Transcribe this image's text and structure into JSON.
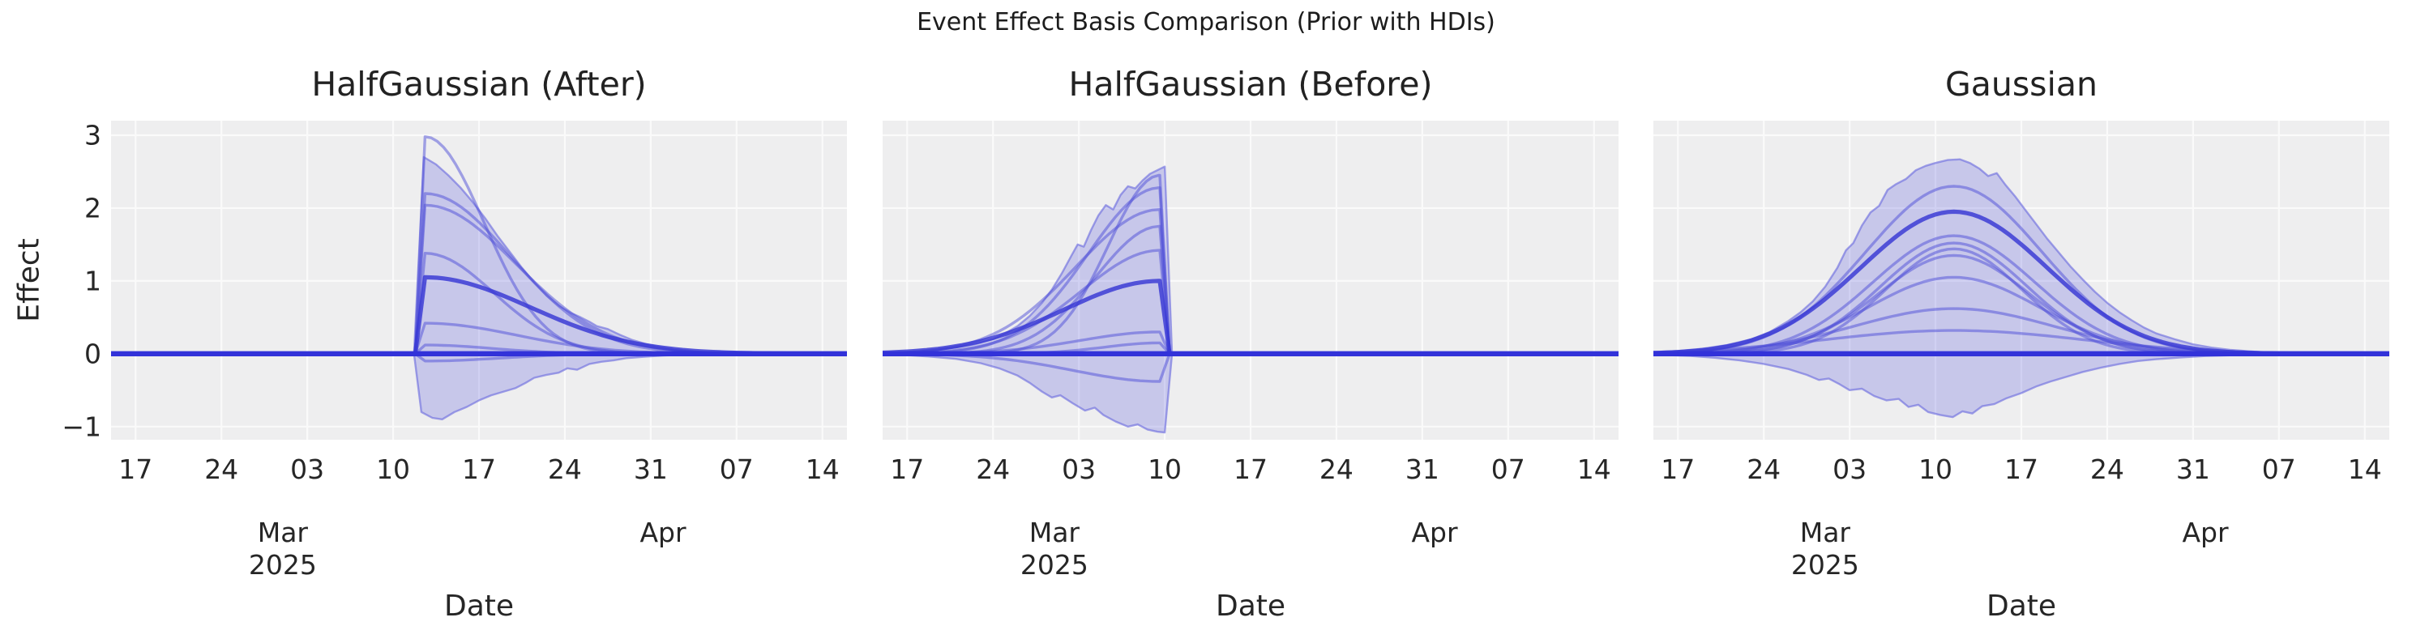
{
  "figure": {
    "title": "Event Effect Basis Comparison (Prior with HDIs)",
    "xlabel": "Date",
    "ylabel": "Effect"
  },
  "axis": {
    "x_tick_labels": [
      "17",
      "24",
      "03",
      "10",
      "17",
      "24",
      "31",
      "07",
      "14"
    ],
    "x_tick_days": [
      2,
      9,
      16,
      23,
      30,
      37,
      44,
      51,
      58
    ],
    "x_tick_dates": [
      "2025-02-17",
      "2025-02-24",
      "2025-03-03",
      "2025-03-10",
      "2025-03-17",
      "2025-03-24",
      "2025-03-31",
      "2025-04-07",
      "2025-04-14"
    ],
    "x_domain_days": [
      0,
      60
    ],
    "y_tick_labels": [
      "3",
      "2",
      "1",
      "0",
      "−1"
    ],
    "y_tick_values": [
      3,
      2,
      1,
      0,
      -1
    ],
    "ylim": [
      -1.18,
      3.2
    ],
    "month_labels": [
      {
        "month": "Mar",
        "year": "2025",
        "day": 14
      },
      {
        "month": "Apr",
        "year": "",
        "day": 45
      }
    ],
    "grid": "on"
  },
  "colors": {
    "baseline": "#3232d9",
    "sample_line": "rgba(78,78,216,0.5)",
    "median_line": "rgba(55,55,212,0.82)",
    "band_fill": "rgba(102,102,221,0.28)",
    "band_edge": "rgba(102,102,221,0.6)",
    "plot_bg": "#eeeeef",
    "grid": "#fafafa",
    "text": "#262626"
  },
  "chart_data": [
    {
      "type": "line",
      "title": "HalfGaussian (After)",
      "basis": "halfgaussian_after",
      "event_day_offset": 24.8,
      "event_date_approx": "2025-03-12",
      "ylim": [
        -1.18,
        3.2
      ],
      "samples": [
        {
          "amplitude": 2.98,
          "sigma_days": 4.8,
          "median": false
        },
        {
          "amplitude": 2.2,
          "sigma_days": 7.0,
          "median": false
        },
        {
          "amplitude": 2.04,
          "sigma_days": 7.4,
          "median": false
        },
        {
          "amplitude": 1.38,
          "sigma_days": 5.6,
          "median": false
        },
        {
          "amplitude": 1.05,
          "sigma_days": 8.6,
          "median": true
        },
        {
          "amplitude": 0.42,
          "sigma_days": 7.5,
          "median": false
        },
        {
          "amplitude": 0.12,
          "sigma_days": 5.5,
          "median": false
        },
        {
          "amplitude": -0.1,
          "sigma_days": 6.0,
          "median": false
        }
      ],
      "hdi_band": {
        "upper": [
          [
            24.7,
            0
          ],
          [
            25.5,
            2.7
          ],
          [
            26.5,
            2.6
          ],
          [
            27.5,
            2.45
          ],
          [
            28.5,
            2.28
          ],
          [
            29.5,
            2.08
          ],
          [
            30.5,
            1.86
          ],
          [
            31.5,
            1.62
          ],
          [
            32.5,
            1.4
          ],
          [
            33.5,
            1.18
          ],
          [
            34.5,
            0.98
          ],
          [
            35.5,
            0.8
          ],
          [
            36.5,
            0.66
          ],
          [
            37.5,
            0.56
          ],
          [
            38.3,
            0.5
          ],
          [
            39,
            0.44
          ],
          [
            39.6,
            0.38
          ],
          [
            40.5,
            0.34
          ],
          [
            41.5,
            0.26
          ],
          [
            42.5,
            0.19
          ],
          [
            43.5,
            0.14
          ],
          [
            44.5,
            0.1
          ],
          [
            46,
            0.06
          ],
          [
            47.5,
            0.035
          ],
          [
            49,
            0.02
          ],
          [
            51,
            0.01
          ],
          [
            53,
            0.005
          ],
          [
            56,
            0
          ],
          [
            60,
            0
          ]
        ],
        "lower": [
          [
            24.7,
            0
          ],
          [
            25.3,
            -0.8
          ],
          [
            26.2,
            -0.88
          ],
          [
            27,
            -0.9
          ],
          [
            28,
            -0.8
          ],
          [
            29,
            -0.73
          ],
          [
            30,
            -0.64
          ],
          [
            31,
            -0.57
          ],
          [
            32,
            -0.52
          ],
          [
            33,
            -0.47
          ],
          [
            33.8,
            -0.4
          ],
          [
            34.5,
            -0.33
          ],
          [
            35.5,
            -0.29
          ],
          [
            36.5,
            -0.26
          ],
          [
            37.2,
            -0.2
          ],
          [
            38,
            -0.22
          ],
          [
            39,
            -0.14
          ],
          [
            40,
            -0.11
          ],
          [
            41,
            -0.09
          ],
          [
            42,
            -0.06
          ],
          [
            43.5,
            -0.04
          ],
          [
            45,
            -0.025
          ],
          [
            47,
            -0.012
          ],
          [
            50,
            -0.005
          ],
          [
            53,
            0
          ],
          [
            60,
            0
          ]
        ]
      }
    },
    {
      "type": "line",
      "title": "HalfGaussian (Before)",
      "basis": "halfgaussian_before",
      "event_day_offset": 23,
      "event_date_approx": "2025-03-10",
      "ylim": [
        -1.18,
        3.2
      ],
      "samples": [
        {
          "amplitude": 2.45,
          "sigma_days": 4.2,
          "median": false
        },
        {
          "amplitude": 2.28,
          "sigma_days": 5.8,
          "median": false
        },
        {
          "amplitude": 1.98,
          "sigma_days": 6.8,
          "median": false
        },
        {
          "amplitude": 1.75,
          "sigma_days": 5.2,
          "median": false
        },
        {
          "amplitude": 1.42,
          "sigma_days": 6.4,
          "median": false
        },
        {
          "amplitude": 1.0,
          "sigma_days": 7.8,
          "median": true
        },
        {
          "amplitude": 0.3,
          "sigma_days": 6.5,
          "median": false
        },
        {
          "amplitude": 0.15,
          "sigma_days": 4.5,
          "median": false
        },
        {
          "amplitude": -0.38,
          "sigma_days": 7.0,
          "median": false
        }
      ],
      "hdi_band": {
        "upper": [
          [
            0,
            0.012
          ],
          [
            2,
            0.025
          ],
          [
            4,
            0.05
          ],
          [
            6,
            0.09
          ],
          [
            7.5,
            0.13
          ],
          [
            9,
            0.2
          ],
          [
            10,
            0.28
          ],
          [
            11,
            0.38
          ],
          [
            12,
            0.52
          ],
          [
            13,
            0.7
          ],
          [
            13.8,
            0.88
          ],
          [
            14.6,
            1.1
          ],
          [
            15.4,
            1.35
          ],
          [
            15.9,
            1.5
          ],
          [
            16.4,
            1.47
          ],
          [
            17,
            1.7
          ],
          [
            17.6,
            1.9
          ],
          [
            18.2,
            2.04
          ],
          [
            18.8,
            1.98
          ],
          [
            19.4,
            2.18
          ],
          [
            20,
            2.3
          ],
          [
            20.6,
            2.27
          ],
          [
            21.2,
            2.38
          ],
          [
            21.8,
            2.47
          ],
          [
            22.4,
            2.52
          ],
          [
            23,
            2.57
          ],
          [
            23.6,
            0
          ],
          [
            26,
            0
          ],
          [
            60,
            0
          ]
        ],
        "lower": [
          [
            0,
            -0.008
          ],
          [
            2,
            -0.018
          ],
          [
            4,
            -0.04
          ],
          [
            6,
            -0.07
          ],
          [
            8,
            -0.13
          ],
          [
            9.5,
            -0.2
          ],
          [
            11,
            -0.3
          ],
          [
            12,
            -0.4
          ],
          [
            13,
            -0.52
          ],
          [
            13.8,
            -0.6
          ],
          [
            14.5,
            -0.57
          ],
          [
            15.5,
            -0.68
          ],
          [
            16.5,
            -0.78
          ],
          [
            17.3,
            -0.74
          ],
          [
            18,
            -0.84
          ],
          [
            19,
            -0.93
          ],
          [
            20,
            -1.0
          ],
          [
            20.8,
            -0.97
          ],
          [
            21.6,
            -1.04
          ],
          [
            22.4,
            -1.07
          ],
          [
            23,
            -1.08
          ],
          [
            23.6,
            0
          ],
          [
            26,
            0
          ],
          [
            60,
            0
          ]
        ]
      }
    },
    {
      "type": "line",
      "title": "Gaussian",
      "basis": "gaussian",
      "event_day_offset": 24.5,
      "event_date_approx": "2025-03-11",
      "ylim": [
        -1.18,
        3.2
      ],
      "samples": [
        {
          "amplitude": 2.3,
          "sigma_days": 7.2,
          "median": false
        },
        {
          "amplitude": 1.95,
          "sigma_days": 7.6,
          "median": true
        },
        {
          "amplitude": 1.62,
          "sigma_days": 6.6,
          "median": false
        },
        {
          "amplitude": 1.52,
          "sigma_days": 6.0,
          "median": false
        },
        {
          "amplitude": 1.44,
          "sigma_days": 5.6,
          "median": false
        },
        {
          "amplitude": 1.35,
          "sigma_days": 6.2,
          "median": false
        },
        {
          "amplitude": 1.05,
          "sigma_days": 7.0,
          "median": false
        },
        {
          "amplitude": 0.62,
          "sigma_days": 8.2,
          "median": false
        },
        {
          "amplitude": 0.32,
          "sigma_days": 10.5,
          "median": false
        }
      ],
      "hdi_band": {
        "upper": [
          [
            0,
            0.02
          ],
          [
            2,
            0.04
          ],
          [
            4,
            0.07
          ],
          [
            6,
            0.12
          ],
          [
            8,
            0.2
          ],
          [
            9.5,
            0.3
          ],
          [
            11,
            0.45
          ],
          [
            12,
            0.57
          ],
          [
            13,
            0.72
          ],
          [
            14,
            0.92
          ],
          [
            15,
            1.18
          ],
          [
            15.7,
            1.42
          ],
          [
            16.3,
            1.52
          ],
          [
            17,
            1.76
          ],
          [
            17.7,
            1.94
          ],
          [
            18.4,
            2.03
          ],
          [
            19.1,
            2.25
          ],
          [
            19.8,
            2.33
          ],
          [
            20.6,
            2.4
          ],
          [
            21.4,
            2.52
          ],
          [
            22.2,
            2.58
          ],
          [
            23,
            2.62
          ],
          [
            24,
            2.66
          ],
          [
            25,
            2.67
          ],
          [
            25.8,
            2.62
          ],
          [
            26.6,
            2.54
          ],
          [
            27.3,
            2.44
          ],
          [
            28,
            2.48
          ],
          [
            28.7,
            2.32
          ],
          [
            29.5,
            2.16
          ],
          [
            30.3,
            1.98
          ],
          [
            31.2,
            1.78
          ],
          [
            32.1,
            1.58
          ],
          [
            33,
            1.4
          ],
          [
            34,
            1.2
          ],
          [
            35,
            1.02
          ],
          [
            36,
            0.85
          ],
          [
            37,
            0.7
          ],
          [
            38,
            0.57
          ],
          [
            39,
            0.46
          ],
          [
            40,
            0.36
          ],
          [
            41,
            0.28
          ],
          [
            42.5,
            0.2
          ],
          [
            44,
            0.13
          ],
          [
            45.5,
            0.085
          ],
          [
            47,
            0.055
          ],
          [
            49,
            0.03
          ],
          [
            51,
            0.015
          ],
          [
            54,
            0.006
          ],
          [
            57,
            0
          ],
          [
            60,
            0
          ]
        ],
        "lower": [
          [
            0,
            -0.012
          ],
          [
            3,
            -0.03
          ],
          [
            5,
            -0.055
          ],
          [
            7,
            -0.09
          ],
          [
            9,
            -0.14
          ],
          [
            11,
            -0.21
          ],
          [
            12.5,
            -0.29
          ],
          [
            13.5,
            -0.36
          ],
          [
            14.3,
            -0.34
          ],
          [
            15.2,
            -0.42
          ],
          [
            16,
            -0.5
          ],
          [
            17,
            -0.48
          ],
          [
            18,
            -0.58
          ],
          [
            19,
            -0.64
          ],
          [
            20,
            -0.62
          ],
          [
            20.8,
            -0.73
          ],
          [
            21.6,
            -0.7
          ],
          [
            22.4,
            -0.8
          ],
          [
            23.4,
            -0.84
          ],
          [
            24.4,
            -0.87
          ],
          [
            25.2,
            -0.79
          ],
          [
            26,
            -0.82
          ],
          [
            26.8,
            -0.72
          ],
          [
            27.8,
            -0.69
          ],
          [
            28.8,
            -0.61
          ],
          [
            30,
            -0.54
          ],
          [
            31.2,
            -0.45
          ],
          [
            32.4,
            -0.38
          ],
          [
            33.6,
            -0.32
          ],
          [
            35,
            -0.25
          ],
          [
            36.5,
            -0.19
          ],
          [
            38,
            -0.14
          ],
          [
            39.5,
            -0.1
          ],
          [
            41,
            -0.075
          ],
          [
            43,
            -0.05
          ],
          [
            45,
            -0.032
          ],
          [
            47.5,
            -0.018
          ],
          [
            50,
            -0.01
          ],
          [
            53,
            -0.005
          ],
          [
            57,
            0
          ],
          [
            60,
            0
          ]
        ]
      }
    }
  ]
}
